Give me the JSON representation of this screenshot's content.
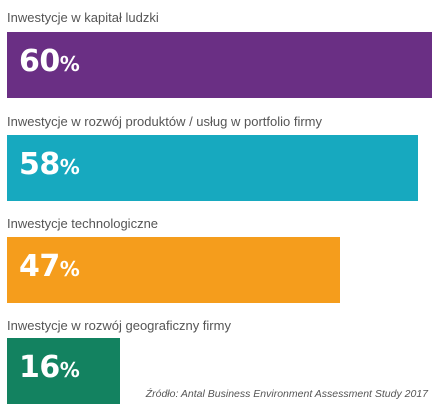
{
  "chart_data": {
    "type": "bar",
    "orientation": "horizontal",
    "categories": [
      "Inwestycje w kapitał ludzki",
      "Inwestycje w rozwój produktów / usług w portfolio firmy",
      "Inwestycje technologiczne",
      "Inwestycje w rozwój geograficzny firmy"
    ],
    "values": [
      60,
      58,
      47,
      16
    ],
    "value_suffix": "%",
    "colors": [
      "#6a2f84",
      "#17a9bf",
      "#f59d1c",
      "#138260"
    ],
    "xlim": [
      0,
      60
    ],
    "grid": false,
    "legend": "none",
    "source": "Źródło: Antal Business Environment Assessment Study 2017"
  }
}
